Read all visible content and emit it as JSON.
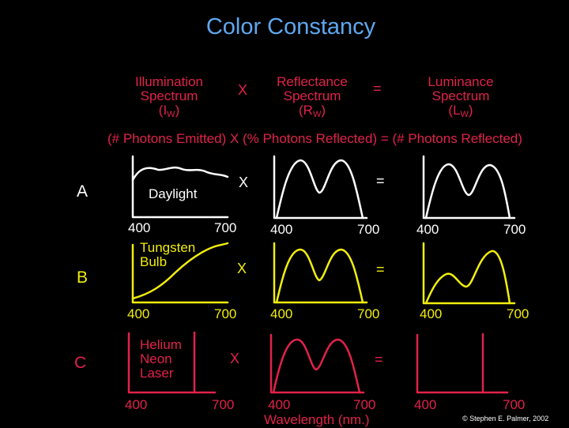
{
  "title": "Color Constancy",
  "headers": {
    "illumination": {
      "line1": "Illumination",
      "line2": "Spectrum",
      "sym": "I",
      "sub": "W"
    },
    "reflectance": {
      "line1": "Reflectance",
      "line2": "Spectrum",
      "sym": "R",
      "sub": "W"
    },
    "luminance": {
      "line1": "Luminance",
      "line2": "Spectrum",
      "sym": "L",
      "sub": "W"
    },
    "times": "X",
    "equals": "=",
    "equation": "(# Photons Emitted) X  (% Photons Reflected) = (# Photons Reflected)"
  },
  "colors": {
    "title": "#5fa8f0",
    "header": "#e2224a",
    "rowA": "#ffffff",
    "rowB": "#f2ee0c",
    "rowC": "#e2224a"
  },
  "rows": [
    {
      "label": "A",
      "source": [
        "Daylight"
      ],
      "color": "#ffffff",
      "times": "X",
      "equals": "=",
      "ticks": [
        "400",
        "700",
        "400",
        "700",
        "400",
        "700"
      ]
    },
    {
      "label": "B",
      "source": [
        "Tungsten",
        "Bulb"
      ],
      "color": "#f2ee0c",
      "times": "X",
      "equals": "=",
      "ticks": [
        "400",
        "700",
        "400",
        "700",
        "400",
        "700"
      ]
    },
    {
      "label": "C",
      "source": [
        "Helium",
        "Neon",
        "Laser"
      ],
      "color": "#e2224a",
      "times": "X",
      "equals": "=",
      "ticks": [
        "400",
        "700",
        "400",
        "700",
        "400",
        "700"
      ]
    }
  ],
  "xaxis_label": "Wavelength (nm.)",
  "credit": "© Stephen E. Palmer, 2002"
}
